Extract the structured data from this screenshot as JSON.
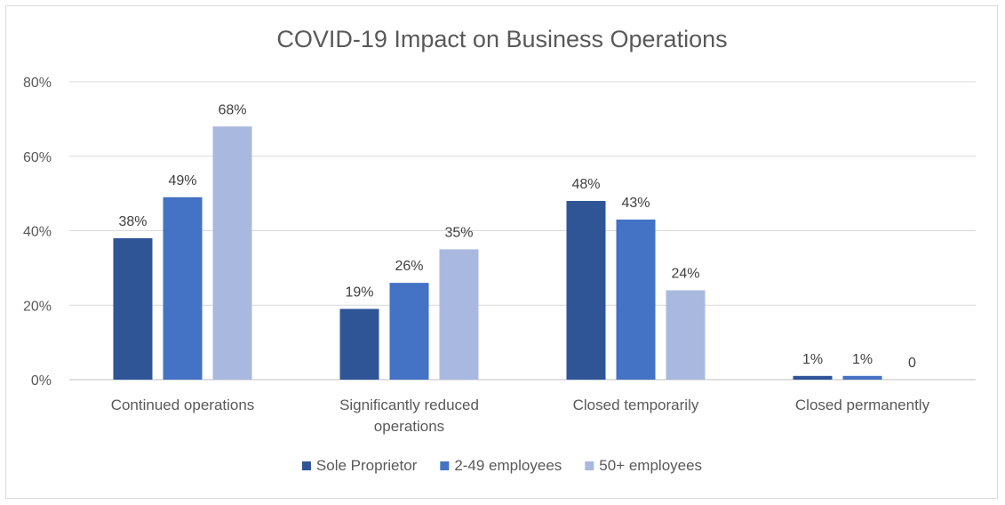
{
  "chart_data": {
    "type": "bar",
    "title": "COVID-19 Impact on Business Operations",
    "categories": [
      [
        "Continued operations"
      ],
      [
        "Significantly reduced",
        "operations"
      ],
      [
        "Closed temporarily"
      ],
      [
        "Closed permanently"
      ]
    ],
    "series": [
      {
        "name": "Sole Proprietor",
        "color": "#2f5597",
        "values": [
          0.38,
          0.19,
          0.48,
          0.01
        ],
        "labels": [
          "38%",
          "19%",
          "48%",
          "1%"
        ]
      },
      {
        "name": "2-49 employees",
        "color": "#4472c4",
        "values": [
          0.49,
          0.26,
          0.43,
          0.01
        ],
        "labels": [
          "49%",
          "26%",
          "43%",
          "1%"
        ]
      },
      {
        "name": "50+ employees",
        "color": "#a9b8de",
        "values": [
          0.68,
          0.35,
          0.24,
          0
        ],
        "labels": [
          "68%",
          "35%",
          "24%",
          "0"
        ]
      }
    ],
    "yticks": [
      0,
      0.2,
      0.4,
      0.6,
      0.8
    ],
    "ytick_labels": [
      "0%",
      "20%",
      "40%",
      "60%",
      "80%"
    ],
    "ylim": [
      0,
      0.8
    ],
    "grid": true,
    "legend_position": "bottom"
  }
}
